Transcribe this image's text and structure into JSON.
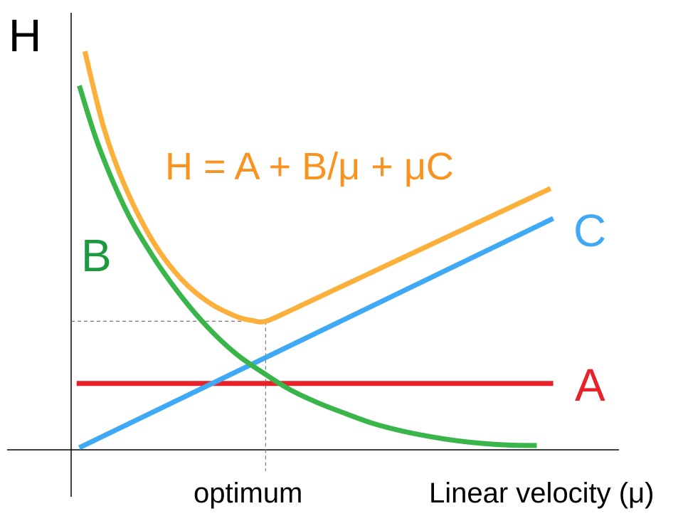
{
  "chart_data": {
    "type": "line",
    "title": "",
    "ylabel": "H",
    "xlabel": "Linear velocity (μ)",
    "equation": "H = A + B/μ + μC",
    "optimum_label": "optimum",
    "xlim": [
      0,
      10
    ],
    "ylim": [
      0,
      10
    ],
    "optimum": {
      "x": 3.55,
      "y": 3.0
    },
    "grid": false,
    "series": [
      {
        "name": "A",
        "color": "#e8212a",
        "x": [
          0.1,
          8.8
        ],
        "y": [
          1.55,
          1.55
        ]
      },
      {
        "name": "C",
        "color": "#3fa9f5",
        "x": [
          0.15,
          8.8
        ],
        "y": [
          0.05,
          5.4
        ]
      },
      {
        "name": "B",
        "color": "#39b54a",
        "x": [
          0.15,
          0.5,
          1.0,
          1.5,
          2.0,
          2.5,
          3.0,
          3.5,
          4.0,
          4.5,
          5.0,
          5.5,
          6.0,
          6.5,
          7.0,
          7.5,
          8.0,
          8.5
        ],
        "y": [
          8.5,
          7.1,
          5.6,
          4.5,
          3.6,
          2.85,
          2.25,
          1.8,
          1.4,
          1.1,
          0.85,
          0.62,
          0.45,
          0.32,
          0.22,
          0.15,
          0.11,
          0.1
        ]
      },
      {
        "name": "H",
        "color": "#fbb03b",
        "x": [
          0.25,
          0.6,
          1.0,
          1.5,
          2.0,
          2.5,
          3.0,
          3.3,
          3.55,
          4.0,
          5.0,
          6.0,
          7.0,
          8.0,
          8.75
        ],
        "y": [
          9.3,
          7.5,
          6.1,
          4.85,
          4.0,
          3.45,
          3.12,
          3.02,
          3.0,
          3.25,
          3.85,
          4.45,
          5.05,
          5.65,
          6.1
        ]
      }
    ]
  }
}
